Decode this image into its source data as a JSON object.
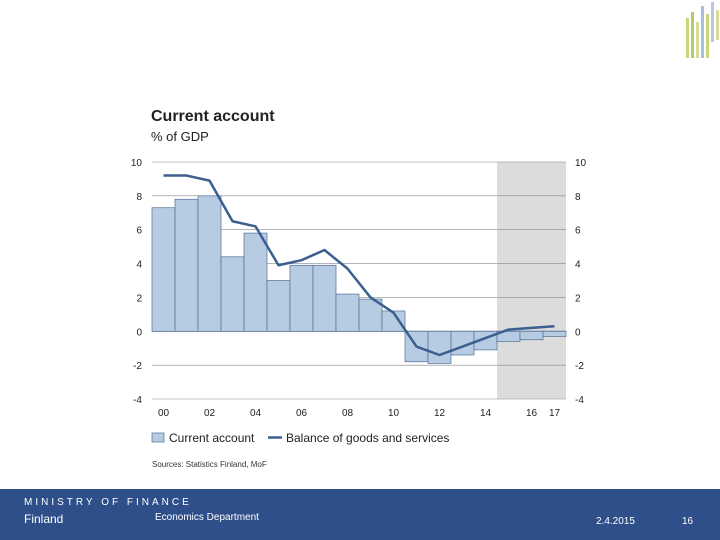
{
  "chart_data": {
    "type": "bar",
    "title": "Current account",
    "subtitle": "% of GDP",
    "source": "Sources: Statistics Finland, MoF",
    "x_tick_labels": [
      "00",
      "02",
      "04",
      "06",
      "08",
      "10",
      "12",
      "14",
      "16",
      "17"
    ],
    "y_ticks": [
      -4,
      -2,
      0,
      2,
      4,
      6,
      8,
      10
    ],
    "ylim": [
      -4,
      10
    ],
    "categories": [
      "2000",
      "2001",
      "2002",
      "2003",
      "2004",
      "2005",
      "2006",
      "2007",
      "2008",
      "2009",
      "2010",
      "2011",
      "2012",
      "2013",
      "2014",
      "2015",
      "2016",
      "2017"
    ],
    "forecast_from": "2015",
    "grid": true,
    "legend_position": "bottom",
    "series": [
      {
        "name": "Current account",
        "type": "bar",
        "values": [
          7.3,
          7.8,
          8.0,
          4.4,
          5.8,
          3.0,
          3.9,
          3.9,
          2.2,
          1.9,
          1.2,
          -1.8,
          -1.9,
          -1.4,
          -1.1,
          -0.6,
          -0.5,
          -0.3
        ]
      },
      {
        "name": "Balance of goods and services",
        "type": "line",
        "values": [
          9.2,
          9.2,
          8.9,
          6.5,
          6.2,
          3.9,
          4.2,
          4.8,
          3.7,
          2.0,
          1.1,
          -0.9,
          -1.4,
          -0.9,
          -0.4,
          0.1,
          0.2,
          0.3
        ]
      }
    ],
    "colors": {
      "bar_fill": "#b7cbe2",
      "bar_stroke": "#4f6f96",
      "line": "#3b5f8f",
      "forecast_shade": "#dcdcdc",
      "grid": "#7f8a96"
    }
  },
  "footer": {
    "ministry": "MINISTRY OF FINANCE",
    "country": "Finland",
    "department": "Economics Department",
    "date": "2.4.2015",
    "page": "16",
    "background": "#2f4f8a"
  }
}
